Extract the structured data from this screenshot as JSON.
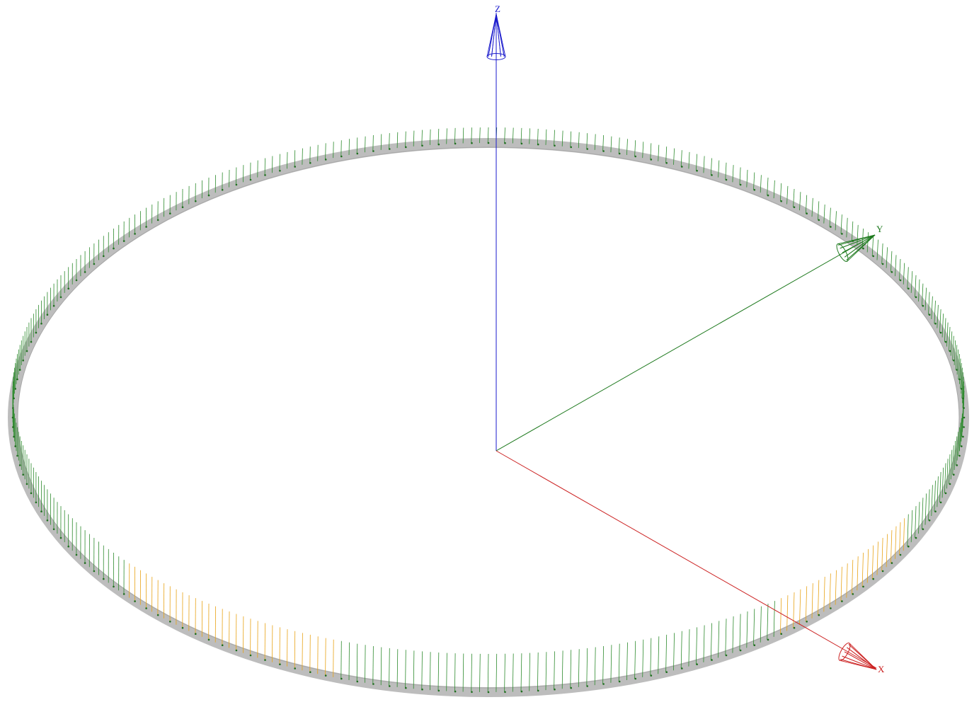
{
  "axes": {
    "x": {
      "label": "X",
      "color": "#cc2222"
    },
    "y": {
      "label": "Y",
      "color": "#1f7a1f"
    },
    "z": {
      "label": "Z",
      "color": "#1a1acc"
    }
  },
  "ring": {
    "band_color": "#bdbdbd",
    "band_edge_color": "#a8a8a8",
    "vector_color_default": "#2e8b2e",
    "vector_color_highlight": "#e8a317",
    "node_color": "#1f6e1f"
  }
}
